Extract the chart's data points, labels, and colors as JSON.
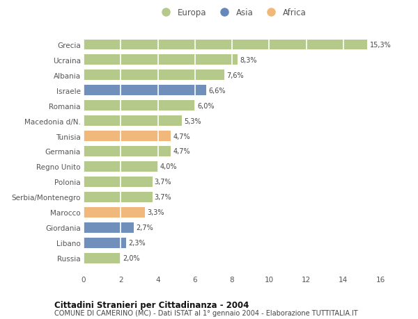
{
  "categories": [
    "Grecia",
    "Ucraina",
    "Albania",
    "Israele",
    "Romania",
    "Macedonia d/N.",
    "Tunisia",
    "Germania",
    "Regno Unito",
    "Polonia",
    "Serbia/Montenegro",
    "Marocco",
    "Giordania",
    "Libano",
    "Russia"
  ],
  "values": [
    15.3,
    8.3,
    7.6,
    6.6,
    6.0,
    5.3,
    4.7,
    4.7,
    4.0,
    3.7,
    3.7,
    3.3,
    2.7,
    2.3,
    2.0
  ],
  "labels": [
    "15,3%",
    "8,3%",
    "7,6%",
    "6,6%",
    "6,0%",
    "5,3%",
    "4,7%",
    "4,7%",
    "4,0%",
    "3,7%",
    "3,7%",
    "3,3%",
    "2,7%",
    "2,3%",
    "2,0%"
  ],
  "continent": [
    "Europa",
    "Europa",
    "Europa",
    "Asia",
    "Europa",
    "Europa",
    "Africa",
    "Europa",
    "Europa",
    "Europa",
    "Europa",
    "Africa",
    "Asia",
    "Asia",
    "Europa"
  ],
  "colors": {
    "Europa": "#b5c98a",
    "Asia": "#7090bb",
    "Africa": "#f0b87a"
  },
  "legend_colors": {
    "Europa": "#b5c98a",
    "Asia": "#6688bb",
    "Africa": "#f0b87a"
  },
  "title1": "Cittadini Stranieri per Cittadinanza - 2004",
  "title2": "COMUNE DI CAMERINO (MC) - Dati ISTAT al 1° gennaio 2004 - Elaborazione TUTTITALIA.IT",
  "xlim": [
    0,
    16
  ],
  "xticks": [
    0,
    2,
    4,
    6,
    8,
    10,
    12,
    14,
    16
  ],
  "background_color": "#ffffff",
  "bar_height": 0.65
}
